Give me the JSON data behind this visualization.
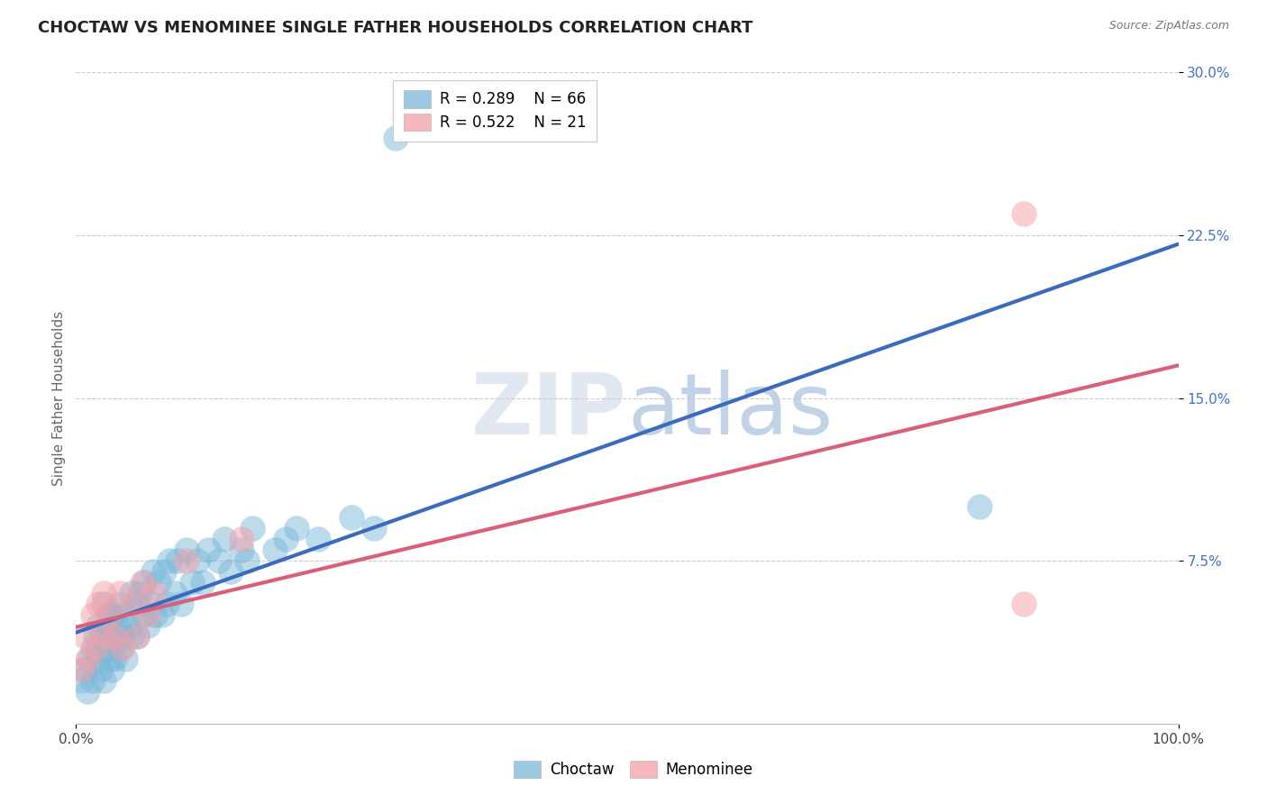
{
  "title": "CHOCTAW VS MENOMINEE SINGLE FATHER HOUSEHOLDS CORRELATION CHART",
  "source": "Source: ZipAtlas.com",
  "ylabel": "Single Father Households",
  "xlim": [
    0.0,
    1.0
  ],
  "ylim": [
    0.0,
    0.3
  ],
  "yticks": [
    0.075,
    0.15,
    0.225,
    0.3
  ],
  "ytick_labels": [
    "7.5%",
    "15.0%",
    "22.5%",
    "30.0%"
  ],
  "choctaw_R": 0.289,
  "choctaw_N": 66,
  "menominee_R": 0.522,
  "menominee_N": 21,
  "choctaw_color": "#7ab8d9",
  "menominee_color": "#f4a0a8",
  "choctaw_line_color": "#3b6bbd",
  "menominee_line_color": "#d9607a",
  "background_color": "#ffffff",
  "title_fontsize": 13,
  "axis_label_fontsize": 11,
  "tick_fontsize": 11,
  "legend_fontsize": 12,
  "choctaw_x": [
    0.005,
    0.008,
    0.01,
    0.012,
    0.015,
    0.015,
    0.018,
    0.02,
    0.02,
    0.022,
    0.025,
    0.025,
    0.025,
    0.028,
    0.03,
    0.03,
    0.03,
    0.032,
    0.033,
    0.035,
    0.035,
    0.038,
    0.04,
    0.04,
    0.042,
    0.045,
    0.045,
    0.048,
    0.05,
    0.05,
    0.055,
    0.055,
    0.058,
    0.06,
    0.062,
    0.065,
    0.068,
    0.07,
    0.072,
    0.075,
    0.078,
    0.08,
    0.082,
    0.085,
    0.09,
    0.092,
    0.095,
    0.1,
    0.105,
    0.11,
    0.115,
    0.12,
    0.13,
    0.135,
    0.14,
    0.15,
    0.155,
    0.16,
    0.18,
    0.19,
    0.2,
    0.22,
    0.25,
    0.27,
    0.29,
    0.82
  ],
  "choctaw_y": [
    0.02,
    0.025,
    0.015,
    0.03,
    0.035,
    0.02,
    0.04,
    0.03,
    0.045,
    0.025,
    0.04,
    0.055,
    0.02,
    0.035,
    0.05,
    0.03,
    0.045,
    0.025,
    0.04,
    0.05,
    0.03,
    0.045,
    0.035,
    0.055,
    0.04,
    0.05,
    0.03,
    0.045,
    0.06,
    0.04,
    0.055,
    0.04,
    0.06,
    0.05,
    0.065,
    0.045,
    0.055,
    0.07,
    0.05,
    0.065,
    0.05,
    0.07,
    0.055,
    0.075,
    0.06,
    0.075,
    0.055,
    0.08,
    0.065,
    0.075,
    0.065,
    0.08,
    0.075,
    0.085,
    0.07,
    0.08,
    0.075,
    0.09,
    0.08,
    0.085,
    0.09,
    0.085,
    0.095,
    0.09,
    0.27,
    0.1
  ],
  "menominee_x": [
    0.005,
    0.008,
    0.01,
    0.015,
    0.018,
    0.02,
    0.025,
    0.025,
    0.03,
    0.035,
    0.04,
    0.042,
    0.05,
    0.055,
    0.06,
    0.065,
    0.07,
    0.1,
    0.15,
    0.86,
    0.86
  ],
  "menominee_y": [
    0.025,
    0.04,
    0.03,
    0.05,
    0.035,
    0.055,
    0.04,
    0.06,
    0.05,
    0.04,
    0.06,
    0.035,
    0.055,
    0.04,
    0.065,
    0.05,
    0.06,
    0.075,
    0.085,
    0.235,
    0.055
  ]
}
